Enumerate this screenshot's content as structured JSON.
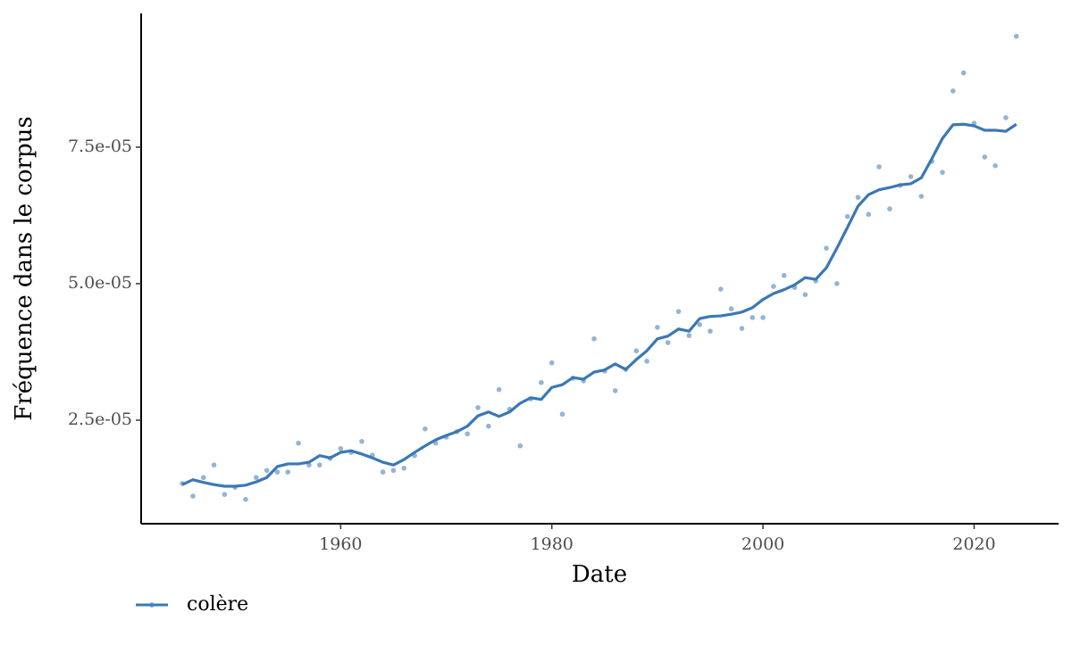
{
  "chart_data": {
    "type": "scatter-smooth",
    "x_label": "Date",
    "y_label": "Fréquence dans le corpus",
    "x": [
      1945,
      1946,
      1947,
      1948,
      1949,
      1950,
      1951,
      1952,
      1953,
      1954,
      1955,
      1956,
      1957,
      1958,
      1959,
      1960,
      1961,
      1962,
      1963,
      1964,
      1965,
      1966,
      1967,
      1968,
      1969,
      1970,
      1971,
      1972,
      1973,
      1974,
      1975,
      1976,
      1977,
      1978,
      1979,
      1980,
      1981,
      1982,
      1983,
      1984,
      1985,
      1986,
      1987,
      1988,
      1989,
      1990,
      1991,
      1992,
      1993,
      1994,
      1995,
      1996,
      1997,
      1998,
      1999,
      2000,
      2001,
      2002,
      2003,
      2004,
      2005,
      2006,
      2007,
      2008,
      2009,
      2010,
      2011,
      2012,
      2013,
      2014,
      2015,
      2016,
      2017,
      2018,
      2019,
      2020,
      2021,
      2022,
      2023,
      2024
    ],
    "series": [
      {
        "name": "colère",
        "color": "#3a78b5",
        "point_color": "#4a82bd",
        "values": [
          1.34e-05,
          1.11e-05,
          1.45e-05,
          1.68e-05,
          1.14e-05,
          1.27e-05,
          1.05e-05,
          1.45e-05,
          1.58e-05,
          1.55e-05,
          1.55e-05,
          2.08e-05,
          1.68e-05,
          1.68e-05,
          1.8e-05,
          1.98e-05,
          1.91e-05,
          2.11e-05,
          1.86e-05,
          1.55e-05,
          1.58e-05,
          1.62e-05,
          1.85e-05,
          2.34e-05,
          2.08e-05,
          2.19e-05,
          2.29e-05,
          2.25e-05,
          2.73e-05,
          2.39e-05,
          3.06e-05,
          2.7e-05,
          2.03e-05,
          2.89e-05,
          3.19e-05,
          3.55e-05,
          2.61e-05,
          3.27e-05,
          3.22e-05,
          3.99e-05,
          3.4e-05,
          3.04e-05,
          3.43e-05,
          3.77e-05,
          3.58e-05,
          4.2e-05,
          3.92e-05,
          4.49e-05,
          4.05e-05,
          4.25e-05,
          4.13e-05,
          4.9e-05,
          4.54e-05,
          4.18e-05,
          4.38e-05,
          4.38e-05,
          4.95e-05,
          5.15e-05,
          4.93e-05,
          4.8e-05,
          5.05e-05,
          5.65e-05,
          5e-05,
          6.23e-05,
          6.58e-05,
          6.27e-05,
          7.14e-05,
          6.37e-05,
          6.8e-05,
          6.96e-05,
          6.6e-05,
          7.24e-05,
          7.04e-05,
          8.53e-05,
          8.86e-05,
          7.94e-05,
          7.32e-05,
          7.16e-05,
          8.04e-05,
          9.53e-05
        ],
        "smooth": [
          1.32e-05,
          1.41e-05,
          1.36e-05,
          1.32e-05,
          1.29e-05,
          1.29e-05,
          1.31e-05,
          1.37e-05,
          1.45e-05,
          1.65e-05,
          1.7e-05,
          1.7e-05,
          1.73e-05,
          1.85e-05,
          1.81e-05,
          1.91e-05,
          1.94e-05,
          1.88e-05,
          1.81e-05,
          1.73e-05,
          1.68e-05,
          1.78e-05,
          1.91e-05,
          2.03e-05,
          2.14e-05,
          2.22e-05,
          2.29e-05,
          2.39e-05,
          2.58e-05,
          2.65e-05,
          2.57e-05,
          2.65e-05,
          2.81e-05,
          2.91e-05,
          2.88e-05,
          3.1e-05,
          3.15e-05,
          3.28e-05,
          3.25e-05,
          3.38e-05,
          3.42e-05,
          3.53e-05,
          3.43e-05,
          3.61e-05,
          3.77e-05,
          3.99e-05,
          4.04e-05,
          4.17e-05,
          4.13e-05,
          4.36e-05,
          4.4e-05,
          4.41e-05,
          4.44e-05,
          4.48e-05,
          4.56e-05,
          4.71e-05,
          4.82e-05,
          4.89e-05,
          4.98e-05,
          5.11e-05,
          5.08e-05,
          5.29e-05,
          5.65e-05,
          6.03e-05,
          6.42e-05,
          6.63e-05,
          6.72e-05,
          6.76e-05,
          6.81e-05,
          6.83e-05,
          6.94e-05,
          7.29e-05,
          7.66e-05,
          7.91e-05,
          7.92e-05,
          7.89e-05,
          7.81e-05,
          7.81e-05,
          7.79e-05,
          7.92e-05
        ]
      }
    ],
    "xlim": [
      1941.1,
      2028.0
    ],
    "xticks": [
      1960,
      1980,
      2000,
      2020
    ],
    "ylim": [
      6.04e-06,
      9.95e-05
    ],
    "yticks": [
      {
        "value": 2.5e-05,
        "label": "2.5e-05"
      },
      {
        "value": 5e-05,
        "label": "5.0e-05"
      },
      {
        "value": 7.5e-05,
        "label": "7.5e-05"
      }
    ],
    "grid": false,
    "legend": "bottom-left"
  }
}
